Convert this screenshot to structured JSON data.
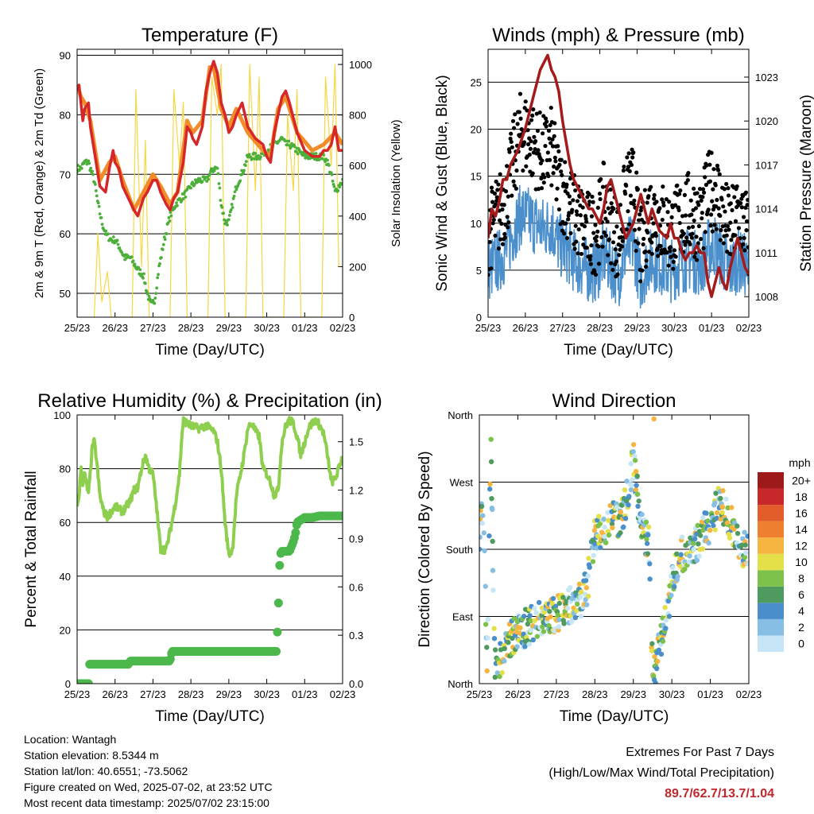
{
  "chart_data": [
    {
      "type": "line",
      "title": "Temperature (F)",
      "xlabel": "Time (Day/UTC)",
      "ylabel": "2m & 9m T (Red, Orange) & 2m Td (Green)",
      "y2label": "Solar Insolation (Yellow)",
      "x_ticks": [
        "25/23",
        "26/23",
        "27/23",
        "28/23",
        "29/23",
        "30/23",
        "01/23",
        "02/23"
      ],
      "x_range_days": [
        0,
        7
      ],
      "ylim": [
        46,
        91
      ],
      "y_ticks": [
        50,
        60,
        70,
        80,
        90
      ],
      "y2lim": [
        0,
        1060
      ],
      "y2_ticks": [
        0,
        200,
        400,
        600,
        800,
        1000
      ],
      "grid": "horizontal at 50, 60, 70, 80, 90",
      "series": [
        {
          "name": "2m T",
          "color": "#d62728",
          "x": [
            0,
            0.05,
            0.1,
            0.15,
            0.2,
            0.3,
            0.35,
            0.45,
            0.5,
            0.55,
            0.6,
            0.75,
            0.85,
            0.95,
            1.0,
            1.1,
            1.2,
            1.35,
            1.5,
            1.6,
            1.75,
            1.85,
            2.0,
            2.1,
            2.2,
            2.35,
            2.45,
            2.55,
            2.65,
            2.8,
            2.9,
            3.0,
            3.05,
            3.15,
            3.3,
            3.4,
            3.5,
            3.6,
            3.7,
            3.8,
            3.9,
            4.0,
            4.1,
            4.2,
            4.35,
            4.5,
            4.7,
            4.9,
            5.0,
            5.1,
            5.2,
            5.3,
            5.4,
            5.5,
            5.6,
            5.8,
            6.0,
            6.2,
            6.4,
            6.5,
            6.6,
            6.7,
            6.8,
            6.9,
            7.0
          ],
          "y": [
            84,
            85,
            82,
            79,
            81,
            82,
            78,
            74,
            72,
            70,
            68,
            67,
            71,
            74,
            72,
            71,
            68,
            66,
            64,
            63,
            66,
            67,
            69,
            69,
            67,
            65,
            64,
            66,
            67,
            72,
            78,
            77,
            76,
            75,
            78,
            84,
            87,
            89,
            87,
            82,
            80,
            77,
            78,
            80,
            82,
            78,
            76,
            75,
            73,
            72,
            77,
            80,
            83,
            84,
            82,
            77,
            74,
            73,
            73,
            74,
            74,
            75,
            78,
            74,
            74
          ]
        },
        {
          "name": "9m T",
          "color": "#f28c28",
          "x": [
            0,
            0.1,
            0.2,
            0.35,
            0.5,
            0.6,
            0.85,
            1.0,
            1.2,
            1.5,
            1.75,
            2.0,
            2.2,
            2.45,
            2.65,
            2.9,
            3.05,
            3.3,
            3.5,
            3.6,
            3.8,
            4.0,
            4.2,
            4.5,
            4.9,
            5.1,
            5.3,
            5.5,
            5.8,
            6.2,
            6.5,
            6.8,
            7.0
          ],
          "y": [
            85,
            83,
            82,
            79,
            73,
            69,
            72,
            73,
            69,
            64,
            67,
            70,
            68,
            65,
            67,
            79,
            77,
            79,
            88,
            88,
            81,
            78,
            81,
            77,
            74,
            73,
            81,
            83,
            77,
            74,
            75,
            77,
            75
          ]
        },
        {
          "name": "2m Td",
          "color": "#4caf3a",
          "x": [
            0,
            0.1,
            0.2,
            0.3,
            0.4,
            0.45,
            0.55,
            0.65,
            0.75,
            0.9,
            1.0,
            1.1,
            1.25,
            1.4,
            1.5,
            1.6,
            1.75,
            1.85,
            1.95,
            2.05,
            2.15,
            2.3,
            2.45,
            2.6,
            2.75,
            2.9,
            3.0,
            3.2,
            3.4,
            3.5,
            3.6,
            3.7,
            3.8,
            3.9,
            4.0,
            4.2,
            4.4,
            4.5,
            4.6,
            4.8,
            5.0,
            5.2,
            5.4,
            5.5,
            5.6,
            5.8,
            6.0,
            6.2,
            6.4,
            6.5,
            6.6,
            6.7,
            6.8,
            6.9,
            7.0
          ],
          "y": [
            71,
            71,
            72,
            72,
            70,
            69,
            65,
            62,
            60,
            59,
            59,
            58,
            56,
            56,
            55,
            54,
            53,
            50,
            48,
            49,
            54,
            59,
            63,
            65,
            66,
            67,
            68,
            69,
            69,
            70,
            71,
            71,
            65,
            62,
            62,
            68,
            71,
            73,
            73,
            73,
            74,
            75,
            76,
            75,
            75,
            74,
            73,
            73,
            73,
            73,
            72,
            70,
            67,
            68,
            69
          ]
        },
        {
          "name": "Solar Insolation",
          "color": "#f6d743",
          "axis": "y2",
          "x": [
            0.45,
            0.55,
            0.65,
            0.8,
            0.9,
            1.45,
            1.55,
            1.7,
            1.8,
            1.9,
            2.45,
            2.55,
            2.7,
            2.8,
            2.9,
            3.45,
            3.55,
            3.7,
            3.8,
            3.9,
            4.45,
            4.55,
            4.7,
            4.8,
            4.9,
            5.45,
            5.55,
            5.7,
            5.8,
            5.9,
            6.45,
            6.55,
            6.7,
            6.8,
            6.9
          ],
          "y": [
            0,
            330,
            60,
            180,
            0,
            0,
            900,
            200,
            700,
            0,
            0,
            900,
            600,
            850,
            0,
            0,
            950,
            800,
            1000,
            0,
            0,
            1000,
            500,
            950,
            0,
            0,
            800,
            500,
            900,
            0,
            0,
            950,
            600,
            1000,
            200
          ]
        }
      ]
    },
    {
      "type": "scatter",
      "title": "Winds (mph) & Pressure (mb)",
      "xlabel": "Time (Day/UTC)",
      "ylabel": "Sonic Wind & Gust (Blue, Black)",
      "y2label": "Station Pressure (Maroon)",
      "x_ticks": [
        "25/23",
        "26/23",
        "27/23",
        "28/23",
        "29/23",
        "30/23",
        "01/23",
        "02/23"
      ],
      "x_range_days": [
        0,
        7
      ],
      "ylim": [
        0,
        28.5
      ],
      "y_ticks": [
        0,
        5,
        10,
        15,
        20,
        25
      ],
      "y2lim": [
        1006.6,
        1024.9
      ],
      "y2_ticks": [
        1008,
        1011,
        1014,
        1017,
        1020,
        1023
      ],
      "grid": "horizontal at 5, 10, 15, 20, 25",
      "series": [
        {
          "name": "Gust",
          "color": "#000000",
          "type": "scatter"
        },
        {
          "name": "Sonic Wind",
          "color": "#4a8fcb",
          "type": "line"
        },
        {
          "name": "Station Pressure",
          "color": "#a51b1b",
          "type": "line",
          "axis": "y2",
          "x": [
            0,
            0.1,
            0.2,
            0.3,
            0.4,
            0.5,
            0.6,
            0.8,
            1.0,
            1.2,
            1.4,
            1.6,
            1.7,
            1.8,
            1.9,
            2.0,
            2.1,
            2.2,
            2.3,
            2.5,
            2.6,
            2.7,
            2.8,
            2.9,
            3.0,
            3.1,
            3.2,
            3.3,
            3.4,
            3.5,
            3.6,
            3.7,
            3.8,
            3.9,
            4.0,
            4.1,
            4.2,
            4.3,
            4.4,
            4.6,
            4.8,
            4.9,
            5.0,
            5.1,
            5.2,
            5.3,
            5.4,
            5.5,
            5.6,
            5.7,
            5.8,
            5.9,
            6.0,
            6.1,
            6.2,
            6.3,
            6.4,
            6.5,
            6.6,
            6.7,
            6.8,
            6.9,
            7.0
          ],
          "y": [
            1012,
            1014,
            1013.5,
            1014.5,
            1016,
            1016,
            1017,
            1018,
            1019.5,
            1021.5,
            1023.5,
            1024.5,
            1023.5,
            1023,
            1022,
            1020,
            1018.5,
            1017,
            1016,
            1015,
            1014.5,
            1014,
            1014,
            1013.5,
            1013,
            1014,
            1015.5,
            1016,
            1015,
            1014,
            1013,
            1012,
            1012.5,
            1013,
            1014,
            1015,
            1014,
            1013,
            1014,
            1012.5,
            1012,
            1013,
            1012,
            1012,
            1011,
            1010.5,
            1011,
            1011,
            1011.5,
            1011,
            1011,
            1009,
            1008,
            1009,
            1010,
            1009,
            1008.5,
            1010,
            1011,
            1012,
            1011,
            1010,
            1009.5
          ]
        }
      ]
    },
    {
      "type": "line",
      "title": "Relative Humidity (%) & Precipitation (in)",
      "xlabel": "Time (Day/UTC)",
      "ylabel": "Percent & Total Rainfall",
      "x_ticks": [
        "25/23",
        "26/23",
        "27/23",
        "28/23",
        "29/23",
        "30/23",
        "01/23",
        "02/23"
      ],
      "x_range_days": [
        0,
        7
      ],
      "ylim": [
        0,
        100
      ],
      "y_ticks": [
        0,
        20,
        40,
        60,
        80,
        100
      ],
      "y2lim": [
        0,
        1.666
      ],
      "y2_ticks": [
        "0.0",
        "0.3",
        "0.6",
        "0.9",
        "1.2",
        "1.5"
      ],
      "grid": "horizontal at 20, 40, 60, 80",
      "series": [
        {
          "name": "Relative Humidity",
          "color": "#8fcf4f",
          "x": [
            0,
            0.05,
            0.1,
            0.15,
            0.2,
            0.3,
            0.4,
            0.45,
            0.5,
            0.6,
            0.7,
            0.8,
            1.0,
            1.2,
            1.4,
            1.5,
            1.6,
            1.7,
            1.8,
            1.9,
            2.0,
            2.1,
            2.2,
            2.35,
            2.5,
            2.6,
            2.7,
            2.75,
            2.8,
            2.9,
            3.0,
            3.2,
            3.4,
            3.5,
            3.6,
            3.7,
            3.8,
            3.9,
            4.0,
            4.1,
            4.2,
            4.4,
            4.5,
            4.6,
            4.7,
            4.8,
            4.9,
            5.0,
            5.1,
            5.2,
            5.3,
            5.4,
            5.5,
            5.6,
            5.7,
            5.8,
            5.9,
            6.0,
            6.1,
            6.2,
            6.3,
            6.4,
            6.5,
            6.6,
            6.7,
            6.8,
            6.9,
            7.0
          ],
          "y": [
            65,
            70,
            80,
            75,
            78,
            70,
            88,
            90,
            85,
            70,
            64,
            62,
            66,
            64,
            68,
            72,
            73,
            80,
            85,
            80,
            78,
            65,
            50,
            50,
            60,
            68,
            78,
            90,
            98,
            97,
            96,
            95,
            96,
            95,
            94,
            90,
            80,
            60,
            48,
            50,
            70,
            85,
            95,
            97,
            94,
            92,
            80,
            78,
            75,
            70,
            72,
            90,
            96,
            98,
            97,
            92,
            85,
            90,
            95,
            97,
            98,
            96,
            93,
            85,
            75,
            76,
            80,
            85
          ]
        },
        {
          "name": "Total Precipitation",
          "color": "#4cb84c",
          "axis": "y2",
          "x": [
            0,
            0.3,
            0.32,
            0.6,
            1.0,
            1.35,
            1.4,
            2.0,
            2.45,
            2.5,
            3.0,
            4.0,
            5.0,
            5.25,
            5.3,
            5.32,
            5.35,
            5.4,
            5.45,
            5.6,
            5.7,
            5.75,
            5.8,
            6.0,
            6.2,
            6.4,
            6.6,
            6.8,
            7.0
          ],
          "y": [
            0,
            0,
            0.12,
            0.12,
            0.12,
            0.12,
            0.14,
            0.14,
            0.14,
            0.2,
            0.2,
            0.2,
            0.2,
            0.2,
            0.4,
            0.6,
            0.8,
            0.82,
            0.82,
            0.82,
            0.88,
            0.92,
            1.0,
            1.03,
            1.03,
            1.04,
            1.04,
            1.04,
            1.04
          ]
        }
      ]
    },
    {
      "type": "scatter",
      "title": "Wind Direction",
      "xlabel": "Time (Day/UTC)",
      "ylabel": "Direction (Colored By Speed)",
      "x_ticks": [
        "25/23",
        "26/23",
        "27/23",
        "28/23",
        "29/23",
        "30/23",
        "01/23",
        "02/23"
      ],
      "x_range_days": [
        0,
        7
      ],
      "y_ticks": [
        "North",
        "East",
        "South",
        "West",
        "North"
      ],
      "ylim_deg": [
        0,
        360
      ],
      "grid": "horizontal at East, South, West",
      "colorbar": {
        "title": "mph",
        "labels": [
          "0",
          "2",
          "4",
          "6",
          "8",
          "10",
          "12",
          "14",
          "16",
          "18",
          "20+"
        ],
        "colors": [
          "#c6e6f7",
          "#86bfe3",
          "#4a8fcb",
          "#4f9a5e",
          "#7cc24a",
          "#e4e04a",
          "#f6b440",
          "#ef8030",
          "#e35d2b",
          "#c9282b",
          "#9e1a1a"
        ]
      },
      "trend": {
        "x": [
          0,
          0.1,
          0.2,
          0.3,
          0.4,
          0.6,
          0.8,
          1.0,
          1.2,
          1.4,
          1.6,
          1.8,
          2.0,
          2.2,
          2.4,
          2.6,
          2.8,
          3.0,
          3.2,
          3.4,
          3.6,
          3.8,
          4.0,
          4.2,
          4.4,
          4.5,
          4.6,
          4.8,
          5.0,
          5.2,
          5.4,
          5.6,
          5.8,
          6.0,
          6.2,
          6.4,
          6.6,
          6.8,
          7.0
        ],
        "y_deg": [
          200,
          235,
          20,
          335,
          20,
          40,
          60,
          70,
          75,
          80,
          85,
          88,
          95,
          100,
          105,
          110,
          130,
          200,
          205,
          225,
          220,
          240,
          300,
          210,
          190,
          10,
          30,
          80,
          130,
          170,
          180,
          185,
          200,
          215,
          240,
          230,
          210,
          185,
          175
        ]
      }
    }
  ],
  "info": {
    "location": "Location: Wantagh",
    "elevation": "Station elevation: 8.5344 m",
    "latlon": "Station lat/lon: 40.6551; -73.5062",
    "created": "Figure created on Wed, 2025-07-02, at 23:52 UTC",
    "recent": "Most recent data timestamp: 2025/07/02 23:15:00"
  },
  "extremes": {
    "title": "Extremes For Past 7 Days",
    "subtitle": "(High/Low/Max Wind/Total Precipitation)",
    "values": "89.7/62.7/13.7/1.04"
  }
}
